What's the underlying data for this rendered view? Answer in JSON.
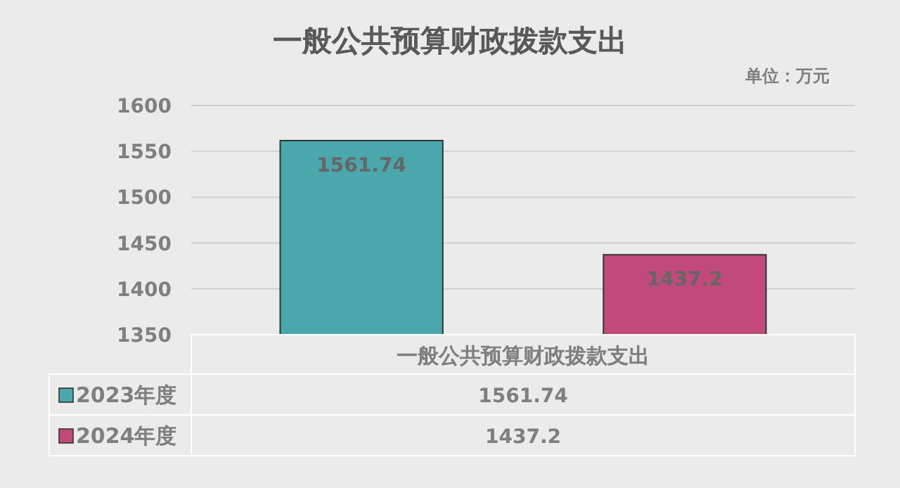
{
  "chart_data": {
    "type": "bar",
    "title": "一般公共预算财政拨款支出",
    "annotations": [
      "单位：万元",
      "1561.74",
      "1437.2"
    ],
    "categories": [
      "一般公共预算财政拨款支出"
    ],
    "series": [
      {
        "name": "2023年度",
        "color": "#4aa8ac",
        "values": [
          1561.74
        ]
      },
      {
        "name": "2024年度",
        "color": "#c24a7a",
        "values": [
          1437.2
        ]
      }
    ],
    "ylim": [
      1350,
      1600
    ],
    "yticks": [
      1350,
      1400,
      1450,
      1500,
      1550,
      1600
    ],
    "grid": "y",
    "data_labels": true,
    "legend": "bottom"
  }
}
